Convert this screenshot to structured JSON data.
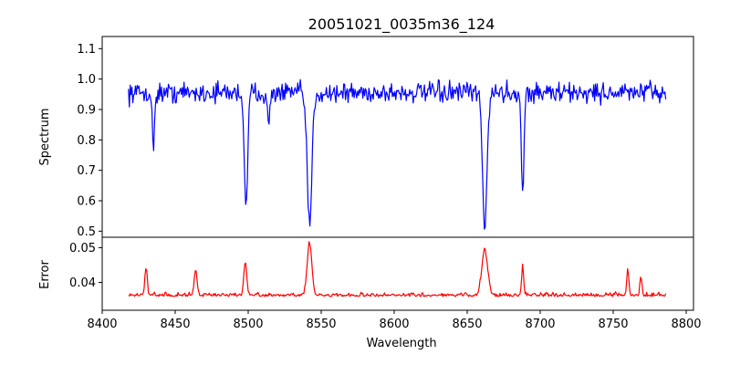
{
  "chart_data": [
    {
      "type": "line",
      "title": "20051021_0035m36_124",
      "xlabel": "",
      "ylabel": "Spectrum",
      "xlim": [
        8400,
        8805
      ],
      "ylim": [
        0.48,
        1.14
      ],
      "yticks": [
        0.5,
        0.6,
        0.7,
        0.8,
        0.9,
        1.0,
        1.1
      ],
      "ytick_labels": [
        "0.5",
        "0.6",
        "0.7",
        "0.8",
        "0.9",
        "1.0",
        "1.1"
      ],
      "grid": false,
      "color": "#0000ff",
      "continuum": 0.955,
      "noise": 0.05,
      "x_range": [
        8418,
        8786
      ],
      "absorption_lines": [
        {
          "x": 8435,
          "depth": 0.18,
          "width": 0.8
        },
        {
          "x": 8498.5,
          "depth": 0.36,
          "width": 1.2
        },
        {
          "x": 8514,
          "depth": 0.12,
          "width": 0.8
        },
        {
          "x": 8542,
          "depth": 0.44,
          "width": 1.6
        },
        {
          "x": 8662,
          "depth": 0.45,
          "width": 1.5
        },
        {
          "x": 8688,
          "depth": 0.33,
          "width": 0.9
        }
      ]
    },
    {
      "type": "line",
      "title": "",
      "xlabel": "Wavelength",
      "ylabel": "Error",
      "xlim": [
        8400,
        8805
      ],
      "ylim": [
        0.032,
        0.053
      ],
      "xticks": [
        8400,
        8450,
        8500,
        8550,
        8600,
        8650,
        8700,
        8750,
        8800
      ],
      "xtick_labels": [
        "8400",
        "8450",
        "8500",
        "8550",
        "8600",
        "8650",
        "8700",
        "8750",
        "8800"
      ],
      "yticks": [
        0.04,
        0.05
      ],
      "ytick_labels": [
        "0.04",
        "0.05"
      ],
      "grid": false,
      "color": "#ff0000",
      "baseline": 0.0362,
      "noise": 0.0012,
      "x_range": [
        8418,
        8786
      ],
      "emission_peaks": [
        {
          "x": 8430,
          "height": 0.008,
          "width": 0.8
        },
        {
          "x": 8464,
          "height": 0.007,
          "width": 1.0
        },
        {
          "x": 8498,
          "height": 0.0095,
          "width": 1.0
        },
        {
          "x": 8542,
          "height": 0.015,
          "width": 1.6
        },
        {
          "x": 8662,
          "height": 0.013,
          "width": 2.0
        },
        {
          "x": 8688,
          "height": 0.0085,
          "width": 0.7
        },
        {
          "x": 8760,
          "height": 0.0075,
          "width": 0.7
        },
        {
          "x": 8769,
          "height": 0.0055,
          "width": 0.7
        }
      ]
    }
  ]
}
